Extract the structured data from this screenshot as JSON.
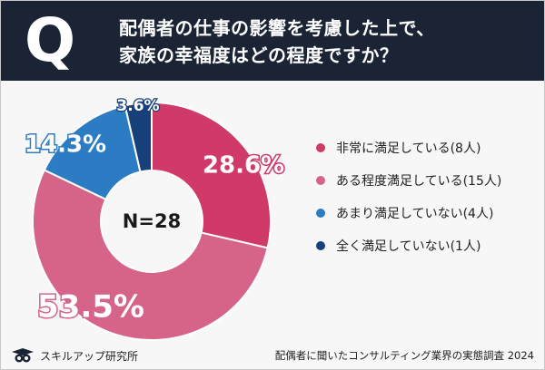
{
  "question": {
    "mark": "Q",
    "line1": "配偶者の仕事の影響を考慮した上で、",
    "line2": "家族の幸福度はどの程度ですか？"
  },
  "colors": {
    "header_bg": "#1b2435",
    "very_satisfied": "#cf3a68",
    "somewhat_satisfied": "#d66488",
    "not_very_satisfied": "#2c7cc4",
    "not_at_all_satisfied": "#173f7a"
  },
  "chart_data": {
    "type": "pie",
    "center_label": "N=28",
    "categories": [
      "非常に満足している(8人)",
      "ある程度満足している(15人)",
      "あまり満足していない(4人)",
      "全く満足していない(1人)"
    ],
    "values": [
      28.6,
      53.5,
      14.3,
      3.6
    ],
    "data_labels": [
      "28.6%",
      "53.5%",
      "14.3%",
      "3.6%"
    ],
    "legend_position": "right"
  },
  "footer": {
    "brand": "スキルアップ研究所",
    "source": "配偶者に聞いたコンサルティング業界の実態調査 2024"
  }
}
